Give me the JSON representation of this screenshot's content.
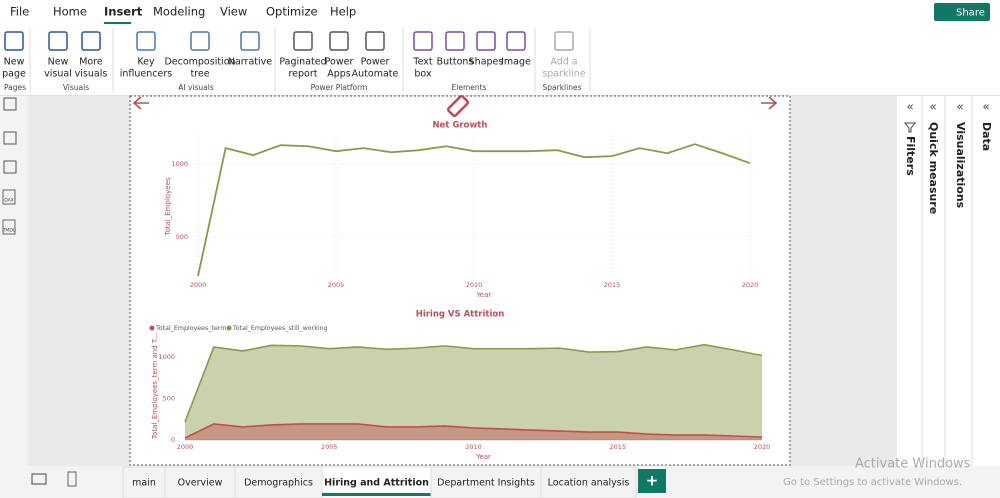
{
  "menu": [
    "File",
    "Home",
    "Insert",
    "Modeling",
    "View",
    "Optimize",
    "Help"
  ],
  "share": "Share",
  "ribbon": [
    {
      "group": "Pages",
      "buttons": [
        [
          "New",
          "page"
        ]
      ]
    },
    {
      "group": "Visuals",
      "buttons": [
        [
          "New",
          "visual"
        ],
        [
          "More",
          "visuals"
        ]
      ]
    },
    {
      "group": "AI visuals",
      "buttons": [
        [
          "Key",
          "influencers"
        ],
        [
          "Decomposition",
          "tree"
        ],
        [
          "Narrative"
        ]
      ]
    },
    {
      "group": "Power Platform",
      "buttons": [
        [
          "Paginated",
          "report"
        ],
        [
          "Power",
          "Apps"
        ],
        [
          "Power",
          "Automate"
        ]
      ]
    },
    {
      "group": "Elements",
      "buttons": [
        [
          "Text",
          "box"
        ],
        [
          "Buttons"
        ],
        [
          "Shapes"
        ],
        [
          "Image"
        ]
      ]
    },
    {
      "group": "Sparklines",
      "buttons": [
        [
          "Add a",
          "sparkline"
        ]
      ]
    }
  ],
  "left_icons": [
    "DAX",
    "TMDL"
  ],
  "panes": [
    "Filters",
    "Quick measure",
    "Visualizations",
    "Data"
  ],
  "tabs": [
    "main",
    "Overview",
    "Demographics",
    "Hiring and Attrition",
    "Department Insights",
    "Location analysis"
  ],
  "add_tab": "+",
  "watermark": {
    "title": "Activate Windows",
    "subtitle": "Go to Settings to activate Windows."
  },
  "chart_data": [
    {
      "type": "line",
      "title": "Net Growth",
      "x_label": "Year",
      "y_label": "Total_Employees",
      "x": [
        2000,
        2001,
        2002,
        2003,
        2004,
        2005,
        2006,
        2007,
        2008,
        2009,
        2010,
        2011,
        2012,
        2013,
        2014,
        2015,
        2016,
        2017,
        2018,
        2019,
        2020
      ],
      "values": [
        233,
        1110,
        1062,
        1130,
        1123,
        1089,
        1110,
        1082,
        1096,
        1123,
        1089,
        1089,
        1089,
        1096,
        1048,
        1055,
        1110,
        1075,
        1137,
        1075,
        1007
      ],
      "color": "#8a9a4a",
      "xlim": [
        2000,
        2020
      ],
      "xticks": [
        2000,
        2005,
        2010,
        2015,
        2020
      ],
      "ylim": [
        220,
        1200
      ],
      "yticks": [
        500,
        1000
      ],
      "grid": true
    },
    {
      "type": "area",
      "title": "Hiring VS Attrition",
      "x_label": "Year",
      "y_label": "Total_Employees_term and T...",
      "x": [
        2000,
        2001,
        2002,
        2003,
        2004,
        2005,
        2006,
        2007,
        2008,
        2009,
        2010,
        2011,
        2012,
        2013,
        2014,
        2015,
        2016,
        2017,
        2018,
        2019,
        2020
      ],
      "series": [
        {
          "name": "Total_Employees_term",
          "color": "#c0504d",
          "values": [
            24,
            193,
            157,
            181,
            193,
            193,
            193,
            157,
            157,
            169,
            145,
            133,
            120,
            108,
            96,
            96,
            72,
            60,
            60,
            48,
            36
          ]
        },
        {
          "name": "Total_Employees_still_working",
          "color": "#8a9a4a",
          "values": [
            217,
            1120,
            1072,
            1140,
            1133,
            1099,
            1120,
            1092,
            1106,
            1133,
            1099,
            1099,
            1099,
            1106,
            1058,
            1065,
            1120,
            1085,
            1147,
            1085,
            1017
          ]
        }
      ],
      "xlim": [
        2000,
        2020
      ],
      "xticks": [
        2000,
        2005,
        2010,
        2015,
        2020
      ],
      "ylim": [
        0,
        1300
      ],
      "yticks": [
        0,
        500,
        1000
      ],
      "grid": false
    }
  ]
}
